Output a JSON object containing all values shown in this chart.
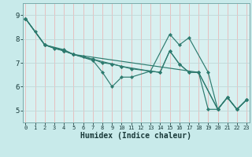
{
  "xlabel": "Humidex (Indice chaleur)",
  "bg_color": "#c8eaea",
  "plot_bg_color": "#d8f0f0",
  "line_color": "#2d7a6e",
  "grid_color_v": "#e8b8b8",
  "grid_color_h": "#c0d8d8",
  "series": [
    {
      "x": [
        0,
        1,
        2,
        4,
        5,
        7,
        8,
        9,
        10,
        11,
        13,
        15,
        16,
        17,
        19,
        20,
        21,
        22,
        23
      ],
      "y": [
        8.85,
        8.3,
        7.75,
        7.55,
        7.35,
        7.1,
        6.6,
        6.0,
        6.4,
        6.4,
        6.65,
        8.2,
        7.75,
        8.05,
        6.6,
        5.05,
        5.55,
        5.05,
        5.45
      ]
    },
    {
      "x": [
        0,
        2,
        3,
        4,
        5,
        6,
        7,
        8,
        9,
        10,
        11,
        13,
        14,
        15,
        16,
        17,
        18,
        19,
        20,
        21,
        22,
        23
      ],
      "y": [
        8.85,
        7.75,
        7.6,
        7.5,
        7.35,
        7.25,
        7.15,
        7.0,
        6.95,
        6.85,
        6.75,
        6.65,
        6.6,
        7.5,
        6.95,
        6.6,
        6.6,
        5.05,
        5.05,
        5.55,
        5.05,
        5.45
      ]
    },
    {
      "x": [
        0,
        2,
        4,
        5,
        9,
        10,
        13,
        14,
        15,
        16,
        17,
        18,
        20,
        21,
        22,
        23
      ],
      "y": [
        8.85,
        7.75,
        7.5,
        7.35,
        6.95,
        6.85,
        6.65,
        6.6,
        7.5,
        6.95,
        6.6,
        6.6,
        5.05,
        5.55,
        5.05,
        5.45
      ]
    },
    {
      "x": [
        0,
        2,
        4,
        5,
        18,
        20,
        21,
        22,
        23
      ],
      "y": [
        8.85,
        7.75,
        7.5,
        7.35,
        6.6,
        5.05,
        5.55,
        5.05,
        5.45
      ]
    }
  ],
  "xlim": [
    -0.3,
    23.3
  ],
  "ylim": [
    4.5,
    9.5
  ],
  "yticks": [
    5,
    6,
    7,
    8,
    9
  ],
  "xticks": [
    0,
    1,
    2,
    3,
    4,
    5,
    6,
    7,
    8,
    9,
    10,
    11,
    12,
    13,
    14,
    15,
    16,
    17,
    18,
    19,
    20,
    21,
    22,
    23
  ],
  "xlabel_fontsize": 7,
  "xlabel_fontweight": "bold",
  "tick_fontsize_x": 5,
  "tick_fontsize_y": 6.5
}
